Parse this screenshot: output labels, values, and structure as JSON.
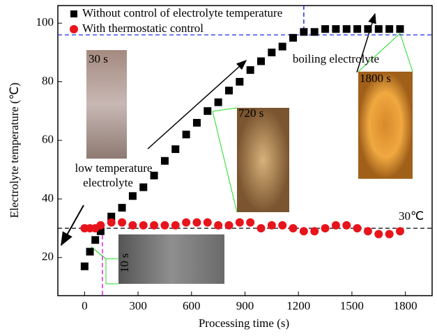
{
  "chart_data": {
    "type": "scatter",
    "xlabel": "Processing time (s)",
    "ylabel": "Electrolyte temperature (℃)",
    "xlim": [
      -150,
      1950
    ],
    "ylim": [
      7,
      106
    ],
    "xticks": [
      0,
      300,
      600,
      900,
      1200,
      1500,
      1800
    ],
    "yticks": [
      20,
      40,
      60,
      80,
      100
    ],
    "series": [
      {
        "name": "Without control of electrolyte temperature",
        "color": "#000000",
        "marker": "square",
        "x": [
          0,
          30,
          60,
          90,
          150,
          210,
          270,
          330,
          390,
          450,
          510,
          570,
          630,
          690,
          750,
          810,
          870,
          930,
          990,
          1050,
          1110,
          1170,
          1230,
          1290,
          1350,
          1410,
          1470,
          1530,
          1590,
          1650,
          1710,
          1770
        ],
        "values": [
          17,
          22,
          26,
          29,
          34,
          37,
          41,
          44,
          48,
          53,
          57,
          62,
          66,
          70,
          73,
          77,
          80,
          84,
          87,
          90,
          92,
          95,
          97,
          97,
          98,
          98,
          98,
          98,
          98,
          98,
          98,
          98
        ]
      },
      {
        "name": "With thermostatic control",
        "color": "#e8141c",
        "marker": "circle",
        "x": [
          0,
          30,
          60,
          90,
          150,
          210,
          270,
          330,
          390,
          450,
          510,
          570,
          630,
          690,
          750,
          810,
          870,
          930,
          990,
          1050,
          1110,
          1170,
          1230,
          1290,
          1350,
          1410,
          1470,
          1530,
          1590,
          1650,
          1710,
          1770
        ],
        "values": [
          30,
          30,
          30,
          31,
          32,
          32,
          31,
          31,
          31,
          31,
          31,
          32,
          32,
          32,
          31,
          31,
          32,
          32,
          30,
          31,
          31,
          30,
          29,
          29,
          30,
          31,
          31,
          30,
          29,
          28,
          28,
          29
        ]
      }
    ],
    "hlines": [
      {
        "value": 30,
        "color": "#000000"
      },
      {
        "value": 96,
        "color": "#1a2fe0"
      }
    ],
    "vlines": [
      {
        "value": 100,
        "color": "#e020e0"
      },
      {
        "value": 1230,
        "color": "#1a2fe0"
      }
    ],
    "annotations": {
      "low": [
        "low temperature",
        "electrolyte"
      ],
      "boiling": "boiling electrolyte",
      "ref": "30℃",
      "photos": [
        "30 s",
        "720 s",
        "1800 s",
        "10 s"
      ]
    }
  }
}
